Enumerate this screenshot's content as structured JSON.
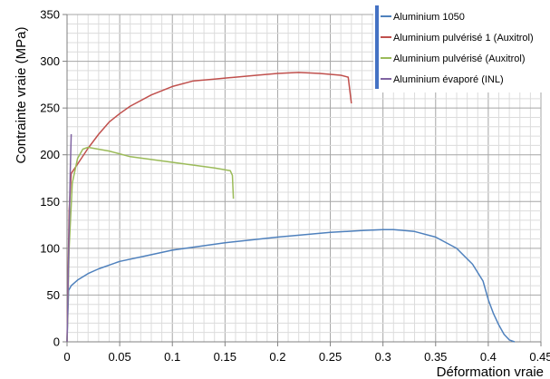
{
  "chart_data": {
    "type": "line",
    "title": "",
    "xlabel": "Déformation vraie",
    "ylabel": "Contrainte vraie (MPa)",
    "xlim": [
      0,
      0.45
    ],
    "ylim": [
      0,
      350
    ],
    "xticks": [
      0,
      0.05,
      0.1,
      0.15,
      0.2,
      0.25,
      0.3,
      0.35,
      0.4,
      0.45
    ],
    "xtick_labels": [
      "0",
      "0.05",
      "0.1",
      "0.15",
      "0.2",
      "0.25",
      "0.3",
      "0.35",
      "0.4",
      "0.45"
    ],
    "yticks": [
      0,
      50,
      100,
      150,
      200,
      250,
      300,
      350
    ],
    "ytick_labels": [
      "0",
      "50",
      "100",
      "150",
      "200",
      "250",
      "300",
      "350"
    ],
    "grid": true,
    "legend_position": "top-right",
    "series": [
      {
        "name": "Aluminium 1050",
        "color": "#4F81BD",
        "x": [
          0,
          0.0015,
          0.004,
          0.01,
          0.02,
          0.03,
          0.05,
          0.075,
          0.1,
          0.15,
          0.2,
          0.25,
          0.28,
          0.3,
          0.31,
          0.33,
          0.35,
          0.37,
          0.385,
          0.395,
          0.4,
          0.405,
          0.41,
          0.415,
          0.42,
          0.425
        ],
        "y": [
          0,
          55,
          60,
          66,
          73,
          78,
          86,
          92,
          98,
          106,
          112,
          117,
          119,
          120,
          120,
          118,
          112,
          100,
          83,
          65,
          45,
          30,
          18,
          8,
          2,
          0
        ]
      },
      {
        "name": "Aluminium pulvérisé 1 (Auxitrol)",
        "color": "#C0504D",
        "x": [
          0,
          0.002,
          0.004,
          0.01,
          0.02,
          0.03,
          0.04,
          0.05,
          0.06,
          0.08,
          0.1,
          0.12,
          0.14,
          0.16,
          0.18,
          0.2,
          0.22,
          0.24,
          0.26,
          0.267,
          0.27
        ],
        "y": [
          0,
          140,
          180,
          190,
          207,
          222,
          235,
          244,
          252,
          264,
          273,
          279,
          281,
          283,
          285,
          287,
          288,
          287,
          285,
          283,
          255
        ]
      },
      {
        "name": "Aluminium pulvérisé (Auxitrol)",
        "color": "#9BBB59",
        "x": [
          0,
          0.002,
          0.005,
          0.01,
          0.015,
          0.02,
          0.04,
          0.06,
          0.08,
          0.1,
          0.12,
          0.14,
          0.155,
          0.157,
          0.158
        ],
        "y": [
          0,
          100,
          170,
          196,
          206,
          208,
          204,
          198,
          195,
          192,
          189,
          186,
          183,
          178,
          153
        ]
      },
      {
        "name": "Aluminium évaporé (INL)",
        "color": "#8064A2",
        "x": [
          0,
          0.001,
          0.002,
          0.003,
          0.004
        ],
        "y": [
          0,
          60,
          120,
          180,
          222
        ]
      }
    ]
  }
}
